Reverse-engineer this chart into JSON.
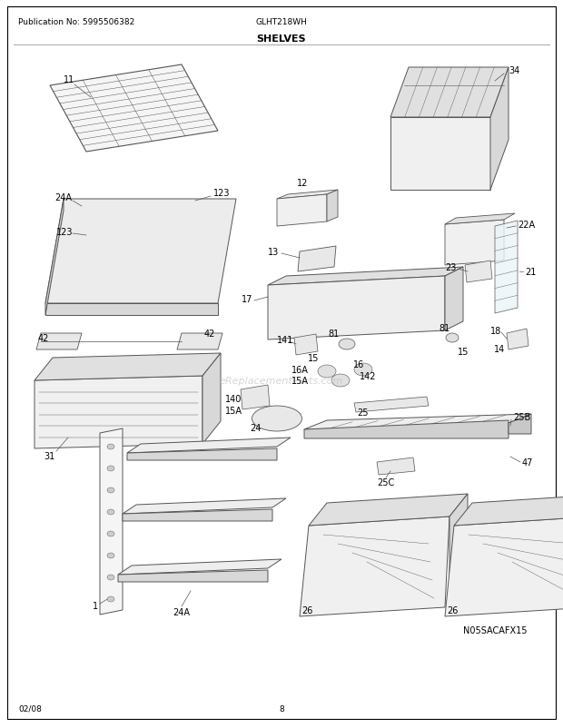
{
  "title": "SHELVES",
  "model": "GLHT218WH",
  "publication": "Publication No: 5995506382",
  "date": "02/08",
  "page": "8",
  "watermark": "N05SACAFX15",
  "erp_watermark": "eReplacementParts.com",
  "bg_color": "#ffffff",
  "border_color": "#000000",
  "text_color": "#000000",
  "fig_width": 6.2,
  "fig_height": 8.03,
  "dpi": 100
}
